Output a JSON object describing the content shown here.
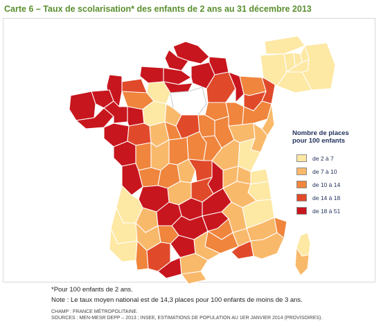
{
  "title": "Carte 6 – Taux de scolarisation* des enfants de 2 ans au 31 décembre 2013",
  "colors": {
    "class1": "#fde8a4",
    "class2": "#f9b96b",
    "class3": "#f0853d",
    "class4": "#e04a2b",
    "class5": "#c8161e",
    "border": "#ffffff",
    "title": "#5a8f2e"
  },
  "legend": {
    "title_line1": "Nombre de places",
    "title_line2": "pour 100 enfants",
    "items": [
      {
        "label": "de 2 à 7",
        "color": "#fde8a4"
      },
      {
        "label": "de 7 à 10",
        "color": "#f9b96b"
      },
      {
        "label": "de 10 à 14",
        "color": "#f0853d"
      },
      {
        "label": "de 14 à 18",
        "color": "#e04a2b"
      },
      {
        "label": "de 18 à 51",
        "color": "#c8161e"
      }
    ]
  },
  "notes": {
    "footnote": "*Pour 100 enfants de 2 ans.",
    "note": "Note : Le taux moyen national est de 14,3 places pour 100 enfants de moins de 3 ans.",
    "champ": "CHAMP : FRANCE MÉTROPOLITAINE.",
    "sources": "SOURCES : MEN-MESR DEPP – 2013 ; INSEE, ESTIMATIONS DE POPULATION AU 1ER JANVIER 2014 (PROVISOIRES)."
  },
  "map": {
    "inset_region": "Île-de-France",
    "corsica": "Corse"
  }
}
